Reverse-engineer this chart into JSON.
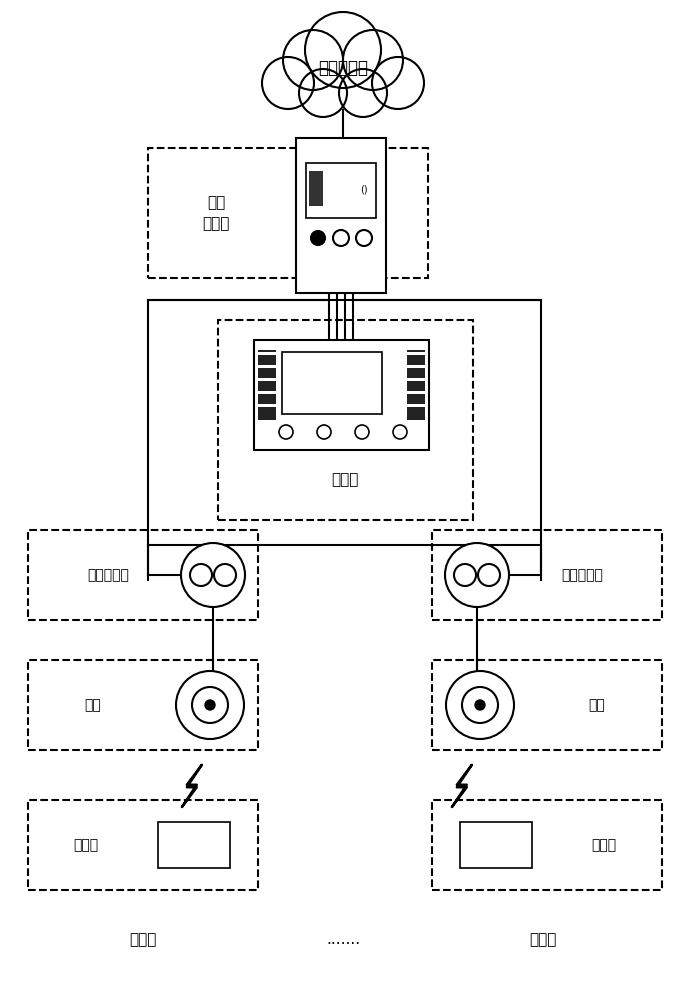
{
  "bg_color": "#ffffff",
  "cloud_label": "内部管理网",
  "control_box_label": "成套\n控制箱",
  "reader_label": "读卡器",
  "detector_label_left": "车辆探测器",
  "detector_label_right": "车辆探测器",
  "antenna_label_left": "天线",
  "antenna_label_right": "天线",
  "card_label_left": "车辆卡",
  "card_label_right": "车辆卡",
  "parking_label_left": "停车位",
  "parking_label_right": "停车位",
  "dots": ".......",
  "figsize": [
    6.87,
    10.0
  ],
  "dpi": 100
}
